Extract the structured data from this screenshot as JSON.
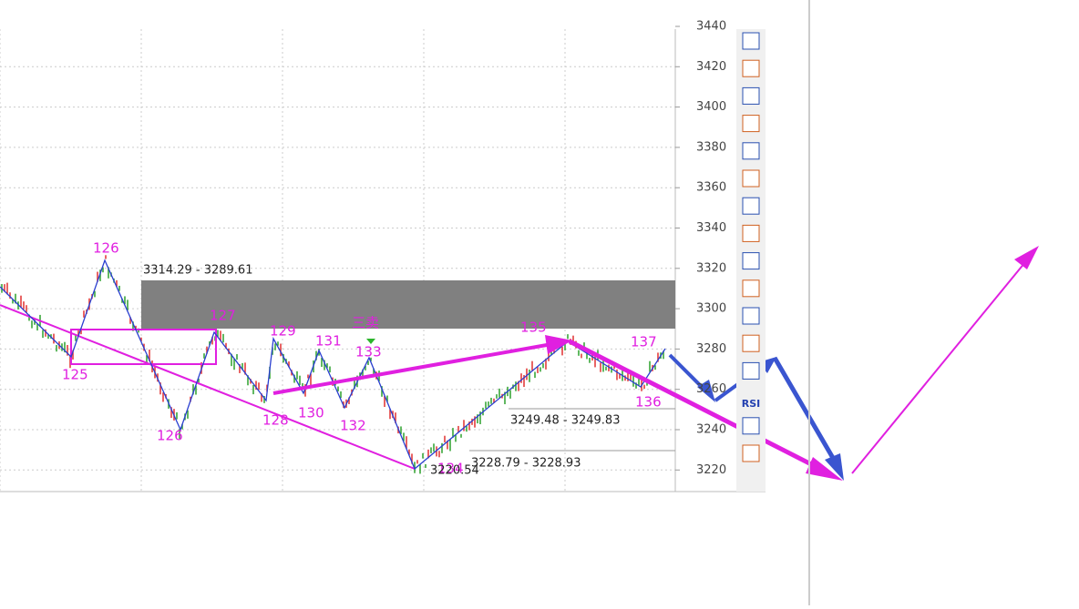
{
  "axis": {
    "labels": [
      "3440",
      "3420",
      "3400",
      "3380",
      "3360",
      "3340",
      "3320",
      "3300",
      "3280",
      "3260",
      "3240",
      "3220"
    ]
  },
  "waves": {
    "w125": "125",
    "w126a": "126",
    "w126b": "126",
    "w127": "127",
    "w128": "128",
    "w129": "129",
    "w130": "130",
    "w131": "131",
    "w132": "132",
    "w133": "133",
    "w134": "134",
    "w135": "135",
    "w136": "136",
    "w137": "137"
  },
  "annotations": {
    "sell": "三卖",
    "zone": "3314.29 - 3289.61",
    "range1": "3249.48 - 3249.83",
    "range2": "3228.79 - 3228.93",
    "low": "3220.54"
  },
  "toolbar": {
    "rsi": "RSI"
  }
}
